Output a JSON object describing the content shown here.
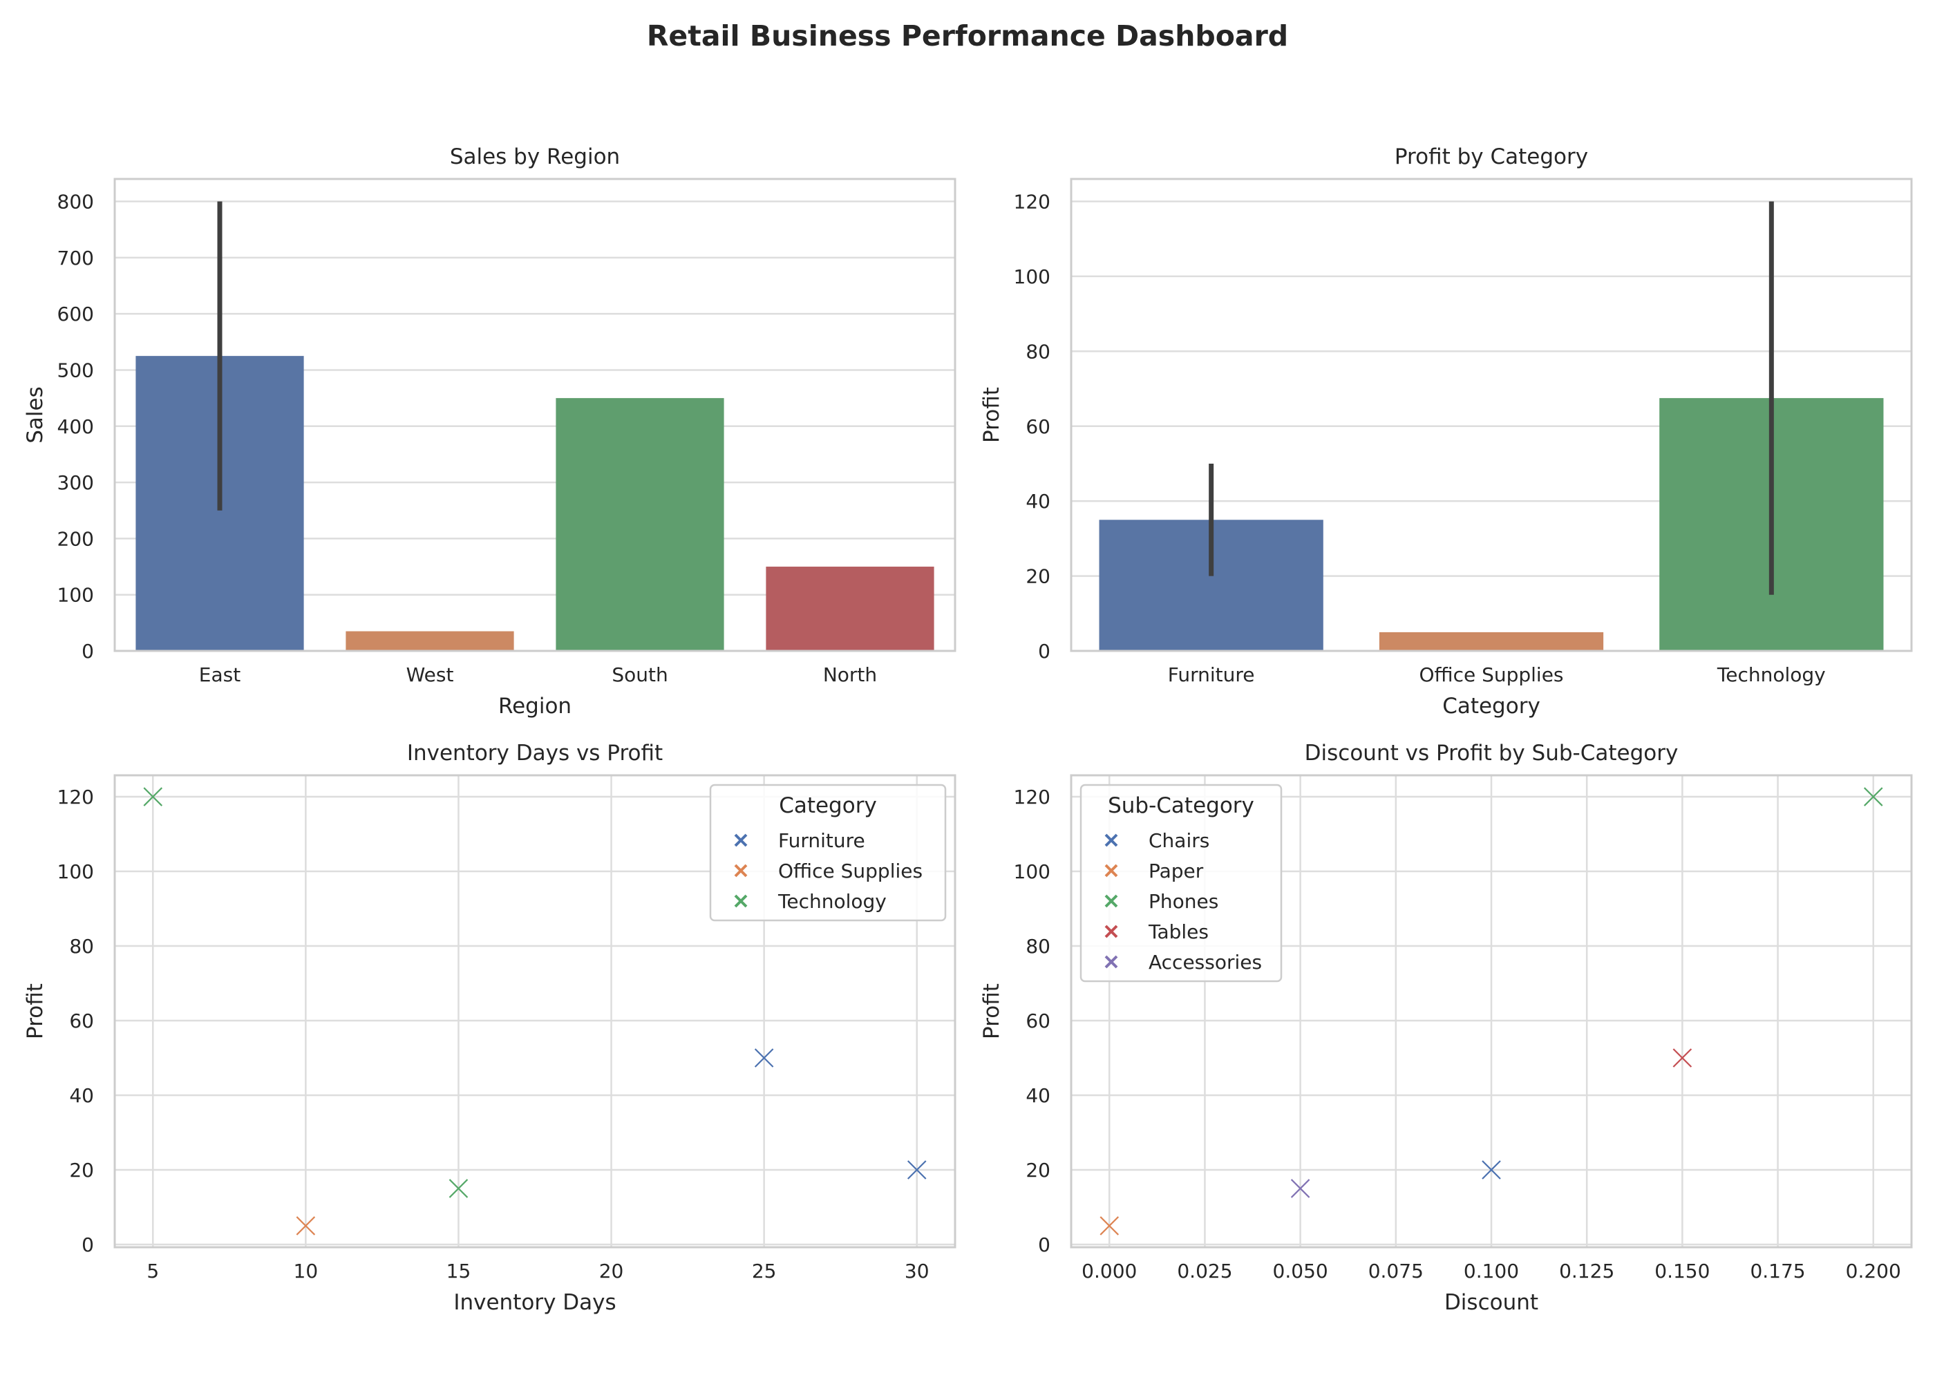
{
  "dashboard": {
    "title": "Retail Business Performance Dashboard"
  },
  "chart_data": [
    {
      "id": "sales-by-region",
      "type": "bar",
      "title": "Sales by Region",
      "xlabel": "Region",
      "ylabel": "Sales",
      "categories": [
        "East",
        "West",
        "South",
        "North"
      ],
      "values": [
        525,
        35,
        450,
        150
      ],
      "error_ranges": [
        [
          250,
          800
        ],
        null,
        null,
        null
      ],
      "colors": [
        "#5975a4",
        "#cc8963",
        "#5f9e6e",
        "#b55d60"
      ],
      "ylim": [
        0,
        840
      ],
      "yticks": [
        0,
        100,
        200,
        300,
        400,
        500,
        600,
        700,
        800
      ],
      "grid": true
    },
    {
      "id": "profit-by-category",
      "type": "bar",
      "title": "Profit by Category",
      "xlabel": "Category",
      "ylabel": "Profit",
      "categories": [
        "Furniture",
        "Office Supplies",
        "Technology"
      ],
      "values": [
        35,
        5,
        67.5
      ],
      "error_ranges": [
        [
          20,
          50
        ],
        null,
        [
          15,
          120
        ]
      ],
      "colors": [
        "#5975a4",
        "#cc8963",
        "#5f9e6e"
      ],
      "ylim": [
        0,
        126
      ],
      "yticks": [
        0,
        20,
        40,
        60,
        80,
        100,
        120
      ],
      "grid": true
    },
    {
      "id": "inventory-vs-profit",
      "type": "scatter",
      "title": "Inventory Days vs Profit",
      "xlabel": "Inventory Days",
      "ylabel": "Profit",
      "xlim": [
        3.75,
        31.25
      ],
      "ylim": [
        -0.75,
        125.75
      ],
      "xticks": [
        5,
        10,
        15,
        20,
        25,
        30
      ],
      "yticks": [
        0,
        20,
        40,
        60,
        80,
        100,
        120
      ],
      "legend": {
        "title": "Category",
        "placement": "top-right"
      },
      "series": [
        {
          "name": "Furniture",
          "color": "#4c72b0",
          "points": [
            [
              25,
              50
            ],
            [
              30,
              20
            ]
          ]
        },
        {
          "name": "Office Supplies",
          "color": "#dd8452",
          "points": [
            [
              10,
              5
            ]
          ]
        },
        {
          "name": "Technology",
          "color": "#55a868",
          "points": [
            [
              5,
              120
            ],
            [
              15,
              15
            ]
          ]
        }
      ],
      "grid": true
    },
    {
      "id": "discount-vs-profit",
      "type": "scatter",
      "title": "Discount vs Profit by Sub-Category",
      "xlabel": "Discount",
      "ylabel": "Profit",
      "xlim": [
        -0.01,
        0.21
      ],
      "ylim": [
        -0.75,
        125.75
      ],
      "xticks": [
        0.0,
        0.025,
        0.05,
        0.075,
        0.1,
        0.125,
        0.15,
        0.175,
        0.2
      ],
      "xtick_labels": [
        "0.000",
        "0.025",
        "0.050",
        "0.075",
        "0.100",
        "0.125",
        "0.150",
        "0.175",
        "0.200"
      ],
      "yticks": [
        0,
        20,
        40,
        60,
        80,
        100,
        120
      ],
      "legend": {
        "title": "Sub-Category",
        "placement": "top-left"
      },
      "series": [
        {
          "name": "Chairs",
          "color": "#4c72b0",
          "points": [
            [
              0.1,
              20
            ]
          ]
        },
        {
          "name": "Paper",
          "color": "#dd8452",
          "points": [
            [
              0.0,
              5
            ]
          ]
        },
        {
          "name": "Phones",
          "color": "#55a868",
          "points": [
            [
              0.2,
              120
            ]
          ]
        },
        {
          "name": "Tables",
          "color": "#c44e52",
          "points": [
            [
              0.15,
              50
            ]
          ]
        },
        {
          "name": "Accessories",
          "color": "#8172b3",
          "points": [
            [
              0.05,
              15
            ]
          ]
        }
      ],
      "grid": true
    }
  ]
}
